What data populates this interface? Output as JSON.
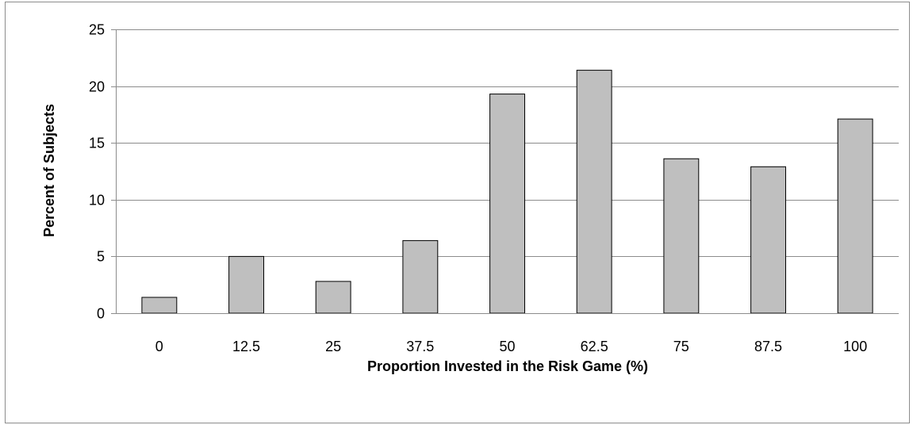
{
  "chart_data": {
    "type": "bar",
    "categories": [
      "0",
      "12.5",
      "25",
      "37.5",
      "50",
      "62.5",
      "75",
      "87.5",
      "100"
    ],
    "values": [
      1.4,
      5.0,
      2.8,
      6.4,
      19.3,
      21.4,
      13.6,
      12.9,
      17.1
    ],
    "xlabel": "Proportion Invested in the Risk Game (%)",
    "ylabel": "Percent of Subjects",
    "ylim": [
      0,
      25
    ],
    "yticks": [
      "0",
      "5",
      "10",
      "15",
      "20",
      "25"
    ],
    "grid": true,
    "legend": "none",
    "colors": {
      "bar_fill": "#bfbfbf",
      "bar_stroke": "#000000",
      "grid": "#8c8c8c",
      "axis": "#8c8c8c"
    }
  }
}
